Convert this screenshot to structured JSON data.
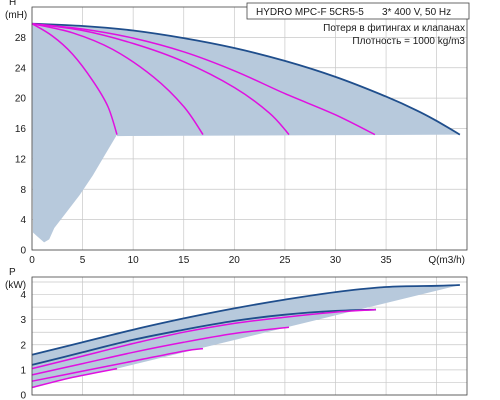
{
  "info": {
    "title": "HYDRO MPC-F 5CR5-5",
    "supply": "3* 400 V, 50 Hz",
    "loss_note": "Потеря в фитингах и клапанах",
    "density": "Плотность = 1000 kg/m3"
  },
  "colors": {
    "max_curve": "#1f4e8c",
    "pump_curves": "#e010e0",
    "operating_area": "#b7c9dc",
    "grid": "#c8c8c8"
  },
  "chart_data": [
    {
      "type": "line",
      "name": "head",
      "ylabel": "H",
      "yunit": "(mH)",
      "xlabel": "Q(m3/h)",
      "xlim": [
        0,
        43
      ],
      "ylim": [
        0,
        32
      ],
      "xticks": [
        0,
        5,
        10,
        15,
        20,
        25,
        30,
        35
      ],
      "yticks": [
        0,
        4,
        8,
        12,
        16,
        20,
        24,
        28
      ],
      "grid": true,
      "min_setpoint_head": 15,
      "series": [
        {
          "role": "max",
          "x": [
            0,
            5,
            10,
            15,
            20,
            25,
            30,
            35,
            38,
            40,
            42.3
          ],
          "y": [
            29.8,
            29.5,
            28.9,
            27.9,
            26.6,
            24.9,
            22.8,
            20.2,
            18.4,
            17.0,
            15.2
          ]
        },
        {
          "role": "pump",
          "x": [
            0,
            2,
            4,
            6,
            7.5,
            8.4
          ],
          "y": [
            29.8,
            28.2,
            25.8,
            22.3,
            18.9,
            15.2
          ]
        },
        {
          "role": "pump",
          "x": [
            0,
            4,
            8,
            12,
            15,
            16.9
          ],
          "y": [
            29.8,
            28.6,
            26.4,
            22.8,
            18.9,
            15.2
          ]
        },
        {
          "role": "pump",
          "x": [
            0,
            5,
            10,
            15,
            20,
            23.5,
            25.4
          ],
          "y": [
            29.8,
            28.9,
            27.2,
            24.8,
            21.4,
            18.0,
            15.2
          ]
        },
        {
          "role": "pump",
          "x": [
            0,
            5,
            10,
            15,
            20,
            25,
            30,
            33.9
          ],
          "y": [
            29.8,
            29.1,
            27.9,
            26.1,
            23.6,
            20.6,
            17.8,
            15.2
          ]
        }
      ],
      "lower_limit": {
        "x": [
          8.4,
          7.2,
          6.0,
          4.7,
          3.3,
          2.2,
          1.7,
          1.2,
          0.5,
          0.1
        ],
        "y": [
          15.2,
          12.5,
          9.8,
          7.2,
          4.8,
          2.9,
          1.4,
          1.0,
          1.8,
          2.3
        ]
      }
    },
    {
      "type": "line",
      "name": "power",
      "ylabel": "P",
      "yunit": "(kW)",
      "xlim": [
        0,
        43
      ],
      "ylim": [
        0,
        4.7
      ],
      "xticks": [
        0,
        5,
        10,
        15,
        20,
        25,
        30,
        35
      ],
      "yticks": [
        0,
        1,
        2,
        3,
        4
      ],
      "grid": true,
      "series": [
        {
          "role": "max",
          "x": [
            0,
            5,
            10,
            15,
            20,
            25,
            30,
            35,
            40,
            42.3
          ],
          "y": [
            1.6,
            2.1,
            2.6,
            3.05,
            3.45,
            3.8,
            4.1,
            4.3,
            4.35,
            4.38
          ]
        },
        {
          "role": "max",
          "x": [
            0,
            5,
            10,
            15,
            20,
            25,
            30,
            34
          ],
          "y": [
            1.2,
            1.7,
            2.2,
            2.6,
            2.95,
            3.2,
            3.35,
            3.4
          ]
        },
        {
          "role": "pump",
          "x": [
            0,
            5,
            10,
            15,
            20,
            25,
            30,
            34
          ],
          "y": [
            1.05,
            1.55,
            2.05,
            2.5,
            2.85,
            3.1,
            3.3,
            3.4
          ]
        },
        {
          "role": "pump",
          "x": [
            0,
            5,
            10,
            15,
            20,
            25.4
          ],
          "y": [
            0.8,
            1.25,
            1.7,
            2.1,
            2.45,
            2.7
          ]
        },
        {
          "role": "pump",
          "x": [
            0,
            5,
            10,
            15,
            16.9
          ],
          "y": [
            0.55,
            0.95,
            1.35,
            1.75,
            1.85
          ]
        },
        {
          "role": "pump",
          "x": [
            0,
            4,
            8.4
          ],
          "y": [
            0.3,
            0.7,
            1.05
          ]
        }
      ]
    }
  ]
}
